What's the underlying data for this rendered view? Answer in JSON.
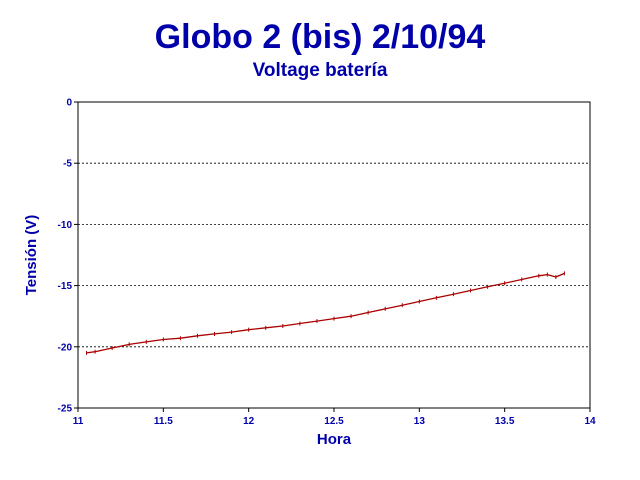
{
  "chart_data": {
    "type": "line",
    "title": "Globo 2 (bis) 2/10/94",
    "subtitle": "Voltage batería",
    "xlabel": "Hora",
    "ylabel": "Tensión (V)",
    "xlim": [
      11,
      14
    ],
    "ylim": [
      -25,
      0
    ],
    "xticks": [
      "11",
      "11.5",
      "12",
      "12.5",
      "13",
      "13.5",
      "14"
    ],
    "yticks": [
      "0",
      "-5",
      "-10",
      "-15",
      "-20",
      "-25"
    ],
    "grid": "horizontal dashed",
    "series": [
      {
        "color": "#aa0000",
        "x": [
          11.05,
          11.1,
          11.2,
          11.3,
          11.4,
          11.5,
          11.6,
          11.7,
          11.8,
          11.9,
          12.0,
          12.1,
          12.2,
          12.3,
          12.4,
          12.5,
          12.6,
          12.7,
          12.8,
          12.9,
          13.0,
          13.1,
          13.2,
          13.3,
          13.4,
          13.5,
          13.6,
          13.7,
          13.75,
          13.8,
          13.85
        ],
        "y": [
          -20.5,
          -20.4,
          -20.1,
          -19.8,
          -19.6,
          -19.4,
          -19.3,
          -19.1,
          -18.95,
          -18.8,
          -18.6,
          -18.45,
          -18.3,
          -18.1,
          -17.9,
          -17.7,
          -17.5,
          -17.2,
          -16.9,
          -16.6,
          -16.3,
          -16.0,
          -15.7,
          -15.4,
          -15.1,
          -14.8,
          -14.5,
          -14.2,
          -14.1,
          -14.3,
          -14.0
        ]
      }
    ]
  }
}
